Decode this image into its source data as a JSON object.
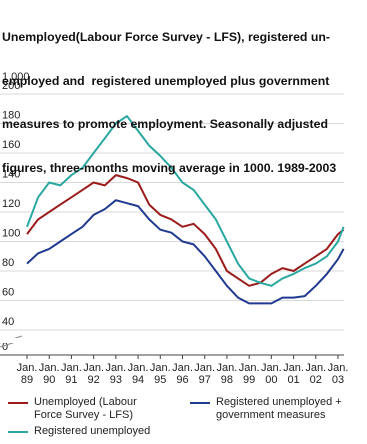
{
  "chart_data": {
    "type": "line",
    "title_lines": [
      "Unemployed(Labour Force Survey - LFS), registered un-",
      "employed and  registered unemployed plus government",
      "measures to promote employment. Seasonally adjusted",
      "figures, three-months moving average in 1000. 1989-2003"
    ],
    "y_unit_label": "1 000",
    "x": [
      1989,
      1989.5,
      1990,
      1990.5,
      1991,
      1991.5,
      1992,
      1992.5,
      1993,
      1993.5,
      1994,
      1994.5,
      1995,
      1995.5,
      1996,
      1996.5,
      1997,
      1997.5,
      1998,
      1998.5,
      1999,
      1999.5,
      2000,
      2000.5,
      2001,
      2001.5,
      2002,
      2002.5,
      2003,
      2003.25
    ],
    "series": [
      {
        "name": "Unemployed (Labour Force Survey - LFS)",
        "color": "#9b1c1c",
        "values": [
          105,
          115,
          120,
          125,
          130,
          135,
          140,
          138,
          145,
          143,
          140,
          125,
          118,
          115,
          110,
          112,
          105,
          95,
          80,
          75,
          70,
          72,
          78,
          82,
          80,
          85,
          90,
          95,
          105,
          108
        ]
      },
      {
        "name": "Registered unemployed + government measures",
        "color": "#1f3a8f",
        "values": [
          85,
          92,
          95,
          100,
          105,
          110,
          118,
          122,
          128,
          126,
          124,
          115,
          108,
          106,
          100,
          98,
          90,
          80,
          70,
          62,
          58,
          58,
          58,
          62,
          62,
          63,
          70,
          78,
          88,
          95
        ]
      },
      {
        "name": "Registered unemployed",
        "color": "#2aa7a0",
        "values": [
          110,
          130,
          140,
          138,
          145,
          150,
          160,
          170,
          180,
          185,
          175,
          165,
          158,
          150,
          140,
          135,
          125,
          115,
          100,
          85,
          75,
          72,
          70,
          75,
          78,
          82,
          85,
          90,
          100,
          110
        ]
      }
    ],
    "xlim": [
      1989,
      2003.25
    ],
    "xticks": [
      {
        "value": 1989,
        "label": "Jan. 89"
      },
      {
        "value": 1990,
        "label": "Jan. 90"
      },
      {
        "value": 1991,
        "label": "Jan. 91"
      },
      {
        "value": 1992,
        "label": "Jan. 92"
      },
      {
        "value": 1993,
        "label": "Jan. 93"
      },
      {
        "value": 1994,
        "label": "Jan. 94"
      },
      {
        "value": 1995,
        "label": "Jan. 95"
      },
      {
        "value": 1996,
        "label": "Jan. 96"
      },
      {
        "value": 1997,
        "label": "Jan. 97"
      },
      {
        "value": 1998,
        "label": "Jan. 98"
      },
      {
        "value": 1999,
        "label": "Jan. 99"
      },
      {
        "value": 2000,
        "label": "Jan. 00"
      },
      {
        "value": 2001,
        "label": "Jan. 01"
      },
      {
        "value": 2002,
        "label": "Jan. 02"
      },
      {
        "value": 2003,
        "label": "Jan. 03"
      }
    ],
    "ylim": [
      0,
      200
    ],
    "axis_break": [
      0,
      40
    ],
    "yticks": [
      0,
      40,
      60,
      80,
      100,
      120,
      140,
      160,
      180,
      200
    ],
    "grid": true
  }
}
